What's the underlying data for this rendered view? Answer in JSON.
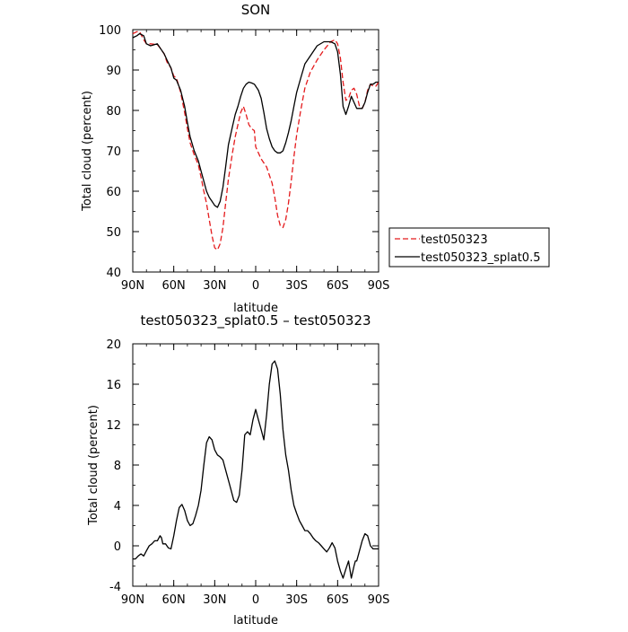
{
  "colors": {
    "test_series": "#e41a1c",
    "splat_series": "#000000",
    "diff_series": "#000000"
  },
  "chart_data": [
    {
      "type": "line",
      "title": "SON",
      "xlabel": "latitude",
      "ylabel": "Total cloud (percent)",
      "xlim": [
        -90,
        90
      ],
      "ylim": [
        40,
        100
      ],
      "grid": false,
      "x_ticks": [
        -90,
        -60,
        -30,
        0,
        30,
        60,
        90
      ],
      "x_tick_labels": [
        "90N",
        "60N",
        "30N",
        "0",
        "30S",
        "60S",
        "90S"
      ],
      "y_ticks": [
        40,
        50,
        60,
        70,
        80,
        90,
        100
      ],
      "y_tick_labels": [
        "40",
        "50",
        "60",
        "70",
        "80",
        "90",
        "100"
      ],
      "legend": "outside-right",
      "series": [
        {
          "name": "test050323",
          "style": "dashed",
          "color": "#e41a1c",
          "x": [
            -90,
            -87,
            -85,
            -82,
            -80,
            -77,
            -72,
            -70,
            -67,
            -65,
            -62,
            -60,
            -58,
            -55,
            -52,
            -50,
            -48,
            -45,
            -42,
            -40,
            -38,
            -36,
            -34,
            -32,
            -30,
            -28,
            -26,
            -24,
            -22,
            -20,
            -17,
            -15,
            -13,
            -11,
            -9,
            -7,
            -5,
            -3,
            -1,
            0,
            2,
            4,
            6,
            8,
            10,
            12,
            14,
            16,
            18,
            20,
            22,
            24,
            26,
            28,
            30,
            33,
            36,
            40,
            45,
            50,
            55,
            58,
            60,
            62,
            64,
            66,
            68,
            70,
            72,
            74,
            76,
            78,
            80,
            82,
            84,
            86,
            88,
            90
          ],
          "y": [
            99.0,
            99.5,
            99.5,
            97.5,
            96.5,
            96.5,
            96.3,
            95.5,
            94.0,
            92.0,
            90.5,
            88.5,
            88.0,
            84.5,
            79.5,
            75.5,
            72.0,
            69.0,
            66.5,
            63.5,
            60.0,
            57.0,
            53.0,
            49.0,
            46.0,
            45.5,
            47.0,
            51.0,
            57.0,
            63.0,
            69.5,
            73.5,
            76.5,
            79.5,
            81.0,
            79.0,
            76.5,
            75.5,
            75.0,
            71.0,
            69.5,
            68.0,
            67.0,
            66.0,
            64.0,
            62.0,
            58.5,
            54.0,
            51.5,
            51.0,
            53.0,
            57.0,
            62.5,
            68.5,
            74.0,
            80.0,
            85.5,
            89.5,
            92.5,
            95.0,
            97.0,
            97.5,
            96.5,
            93.0,
            87.0,
            82.5,
            83.0,
            85.0,
            85.5,
            84.0,
            81.0,
            80.5,
            82.0,
            85.0,
            86.5,
            86.0,
            86.0,
            87.0
          ]
        },
        {
          "name": "test050323_splat0.5",
          "style": "solid",
          "color": "#000000",
          "x": [
            -90,
            -87,
            -85,
            -82,
            -80,
            -77,
            -72,
            -70,
            -67,
            -65,
            -62,
            -60,
            -58,
            -55,
            -52,
            -50,
            -48,
            -45,
            -42,
            -40,
            -38,
            -36,
            -34,
            -32,
            -30,
            -28,
            -26,
            -24,
            -22,
            -20,
            -17,
            -15,
            -13,
            -11,
            -9,
            -7,
            -5,
            -3,
            -1,
            0,
            2,
            4,
            6,
            8,
            10,
            12,
            14,
            16,
            18,
            20,
            22,
            24,
            26,
            28,
            30,
            33,
            36,
            40,
            45,
            50,
            55,
            58,
            60,
            62,
            64,
            66,
            68,
            70,
            72,
            74,
            76,
            78,
            80,
            82,
            84,
            86,
            88,
            90
          ],
          "y": [
            98.0,
            98.5,
            99.0,
            98.5,
            96.5,
            96.0,
            96.5,
            95.5,
            94.0,
            92.5,
            90.5,
            88.0,
            87.5,
            85.0,
            81.0,
            77.0,
            73.5,
            70.0,
            67.5,
            65.0,
            62.5,
            60.0,
            58.5,
            57.5,
            56.5,
            56.0,
            57.5,
            61.0,
            66.0,
            71.5,
            76.0,
            79.0,
            81.0,
            83.5,
            85.5,
            86.5,
            87.0,
            86.8,
            86.5,
            86.0,
            85.0,
            83.0,
            79.5,
            75.5,
            73.0,
            71.0,
            70.0,
            69.5,
            69.5,
            70.0,
            72.0,
            74.5,
            77.5,
            81.0,
            84.5,
            88.0,
            91.5,
            93.5,
            96.0,
            97.0,
            97.0,
            96.5,
            94.5,
            89.0,
            81.0,
            79.0,
            81.0,
            83.5,
            82.0,
            80.5,
            80.5,
            80.5,
            82.0,
            84.5,
            86.5,
            86.5,
            87.0,
            87.0
          ]
        }
      ]
    },
    {
      "type": "line",
      "title": "test050323_splat0.5 – test050323",
      "xlabel": "latitude",
      "ylabel": "Total cloud (percent)",
      "xlim": [
        -90,
        90
      ],
      "ylim": [
        -4,
        20
      ],
      "grid": false,
      "x_ticks": [
        -90,
        -60,
        -30,
        0,
        30,
        60,
        90
      ],
      "x_tick_labels": [
        "90N",
        "60N",
        "30N",
        "0",
        "30S",
        "60S",
        "90S"
      ],
      "y_ticks": [
        -4,
        0,
        4,
        8,
        12,
        16,
        20
      ],
      "y_tick_labels": [
        "-4",
        "0",
        "4",
        "8",
        "12",
        "16",
        "20"
      ],
      "series": [
        {
          "style": "solid",
          "color": "#000000",
          "x": [
            -90,
            -88,
            -86,
            -84,
            -82,
            -80,
            -78,
            -76,
            -74,
            -72,
            -70,
            -69,
            -68,
            -66,
            -64,
            -62,
            -60,
            -58,
            -56,
            -54,
            -52,
            -50,
            -48,
            -46,
            -44,
            -42,
            -40,
            -38,
            -36,
            -34,
            -32,
            -30,
            -28,
            -26,
            -24,
            -22,
            -20,
            -18,
            -16,
            -14,
            -12,
            -10,
            -8,
            -6,
            -4,
            -2,
            0,
            2,
            4,
            6,
            8,
            10,
            12,
            14,
            16,
            18,
            20,
            22,
            24,
            26,
            28,
            30,
            32,
            34,
            36,
            38,
            40,
            42,
            44,
            46,
            48,
            50,
            52,
            54,
            56,
            58,
            60,
            62,
            64,
            66,
            68,
            70,
            72,
            73,
            74,
            76,
            78,
            80,
            82,
            84,
            86,
            88,
            90
          ],
          "y": [
            -1.3,
            -1.3,
            -1.0,
            -0.8,
            -1.0,
            -0.5,
            0.0,
            0.2,
            0.5,
            0.5,
            1.0,
            0.8,
            0.2,
            0.2,
            -0.2,
            -0.3,
            1.0,
            2.5,
            3.8,
            4.1,
            3.5,
            2.5,
            2.0,
            2.2,
            3.0,
            4.0,
            5.5,
            8.0,
            10.2,
            10.8,
            10.5,
            9.5,
            9.0,
            8.8,
            8.5,
            7.5,
            6.5,
            5.5,
            4.5,
            4.3,
            5.0,
            7.5,
            11.0,
            11.3,
            11.0,
            12.5,
            13.5,
            12.5,
            11.5,
            10.5,
            13.0,
            16.0,
            18.0,
            18.3,
            17.5,
            15.0,
            11.5,
            9.0,
            7.5,
            5.5,
            4.0,
            3.2,
            2.5,
            2.0,
            1.5,
            1.5,
            1.2,
            0.8,
            0.5,
            0.3,
            0.0,
            -0.3,
            -0.6,
            -0.2,
            0.3,
            -0.2,
            -1.5,
            -2.5,
            -3.2,
            -2.3,
            -1.5,
            -3.2,
            -2.0,
            -1.5,
            -1.5,
            -0.5,
            0.5,
            1.2,
            1.0,
            0.0,
            -0.3,
            -0.3,
            -0.3
          ]
        }
      ]
    }
  ]
}
